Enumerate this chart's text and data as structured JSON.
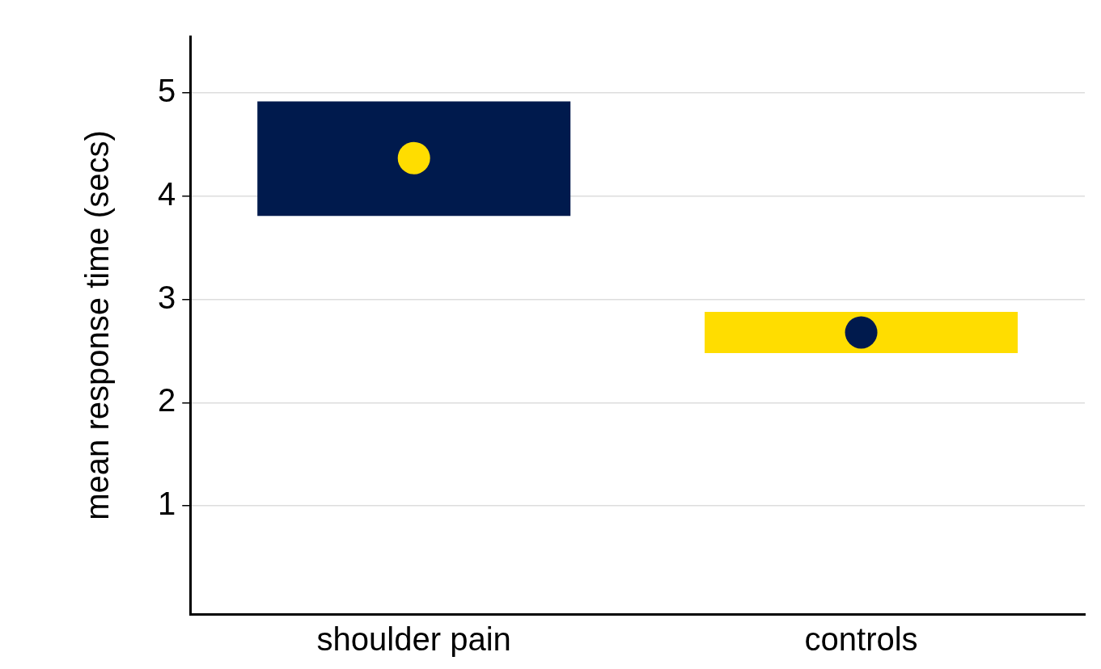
{
  "chart_data": {
    "type": "bar",
    "ylabel": "mean response time (secs)",
    "categories": [
      "shoulder pain",
      "controls"
    ],
    "series": [
      {
        "base": [
          3.81,
          2.48
        ],
        "values": [
          1.11,
          0.4
        ],
        "colors": [
          "#001a4d",
          "#ffdd00"
        ]
      },
      {
        "type": "scatter",
        "x": [
          "shoulder pain",
          "controls"
        ],
        "values": [
          4.37,
          2.68
        ],
        "colors": [
          "#ffdd00",
          "#001a4d"
        ],
        "marker": "circle"
      }
    ],
    "ylim": [
      -0.05,
      5.55
    ],
    "yticks": [
      1,
      2,
      3,
      4,
      5
    ],
    "grid": "y",
    "legend": false
  }
}
